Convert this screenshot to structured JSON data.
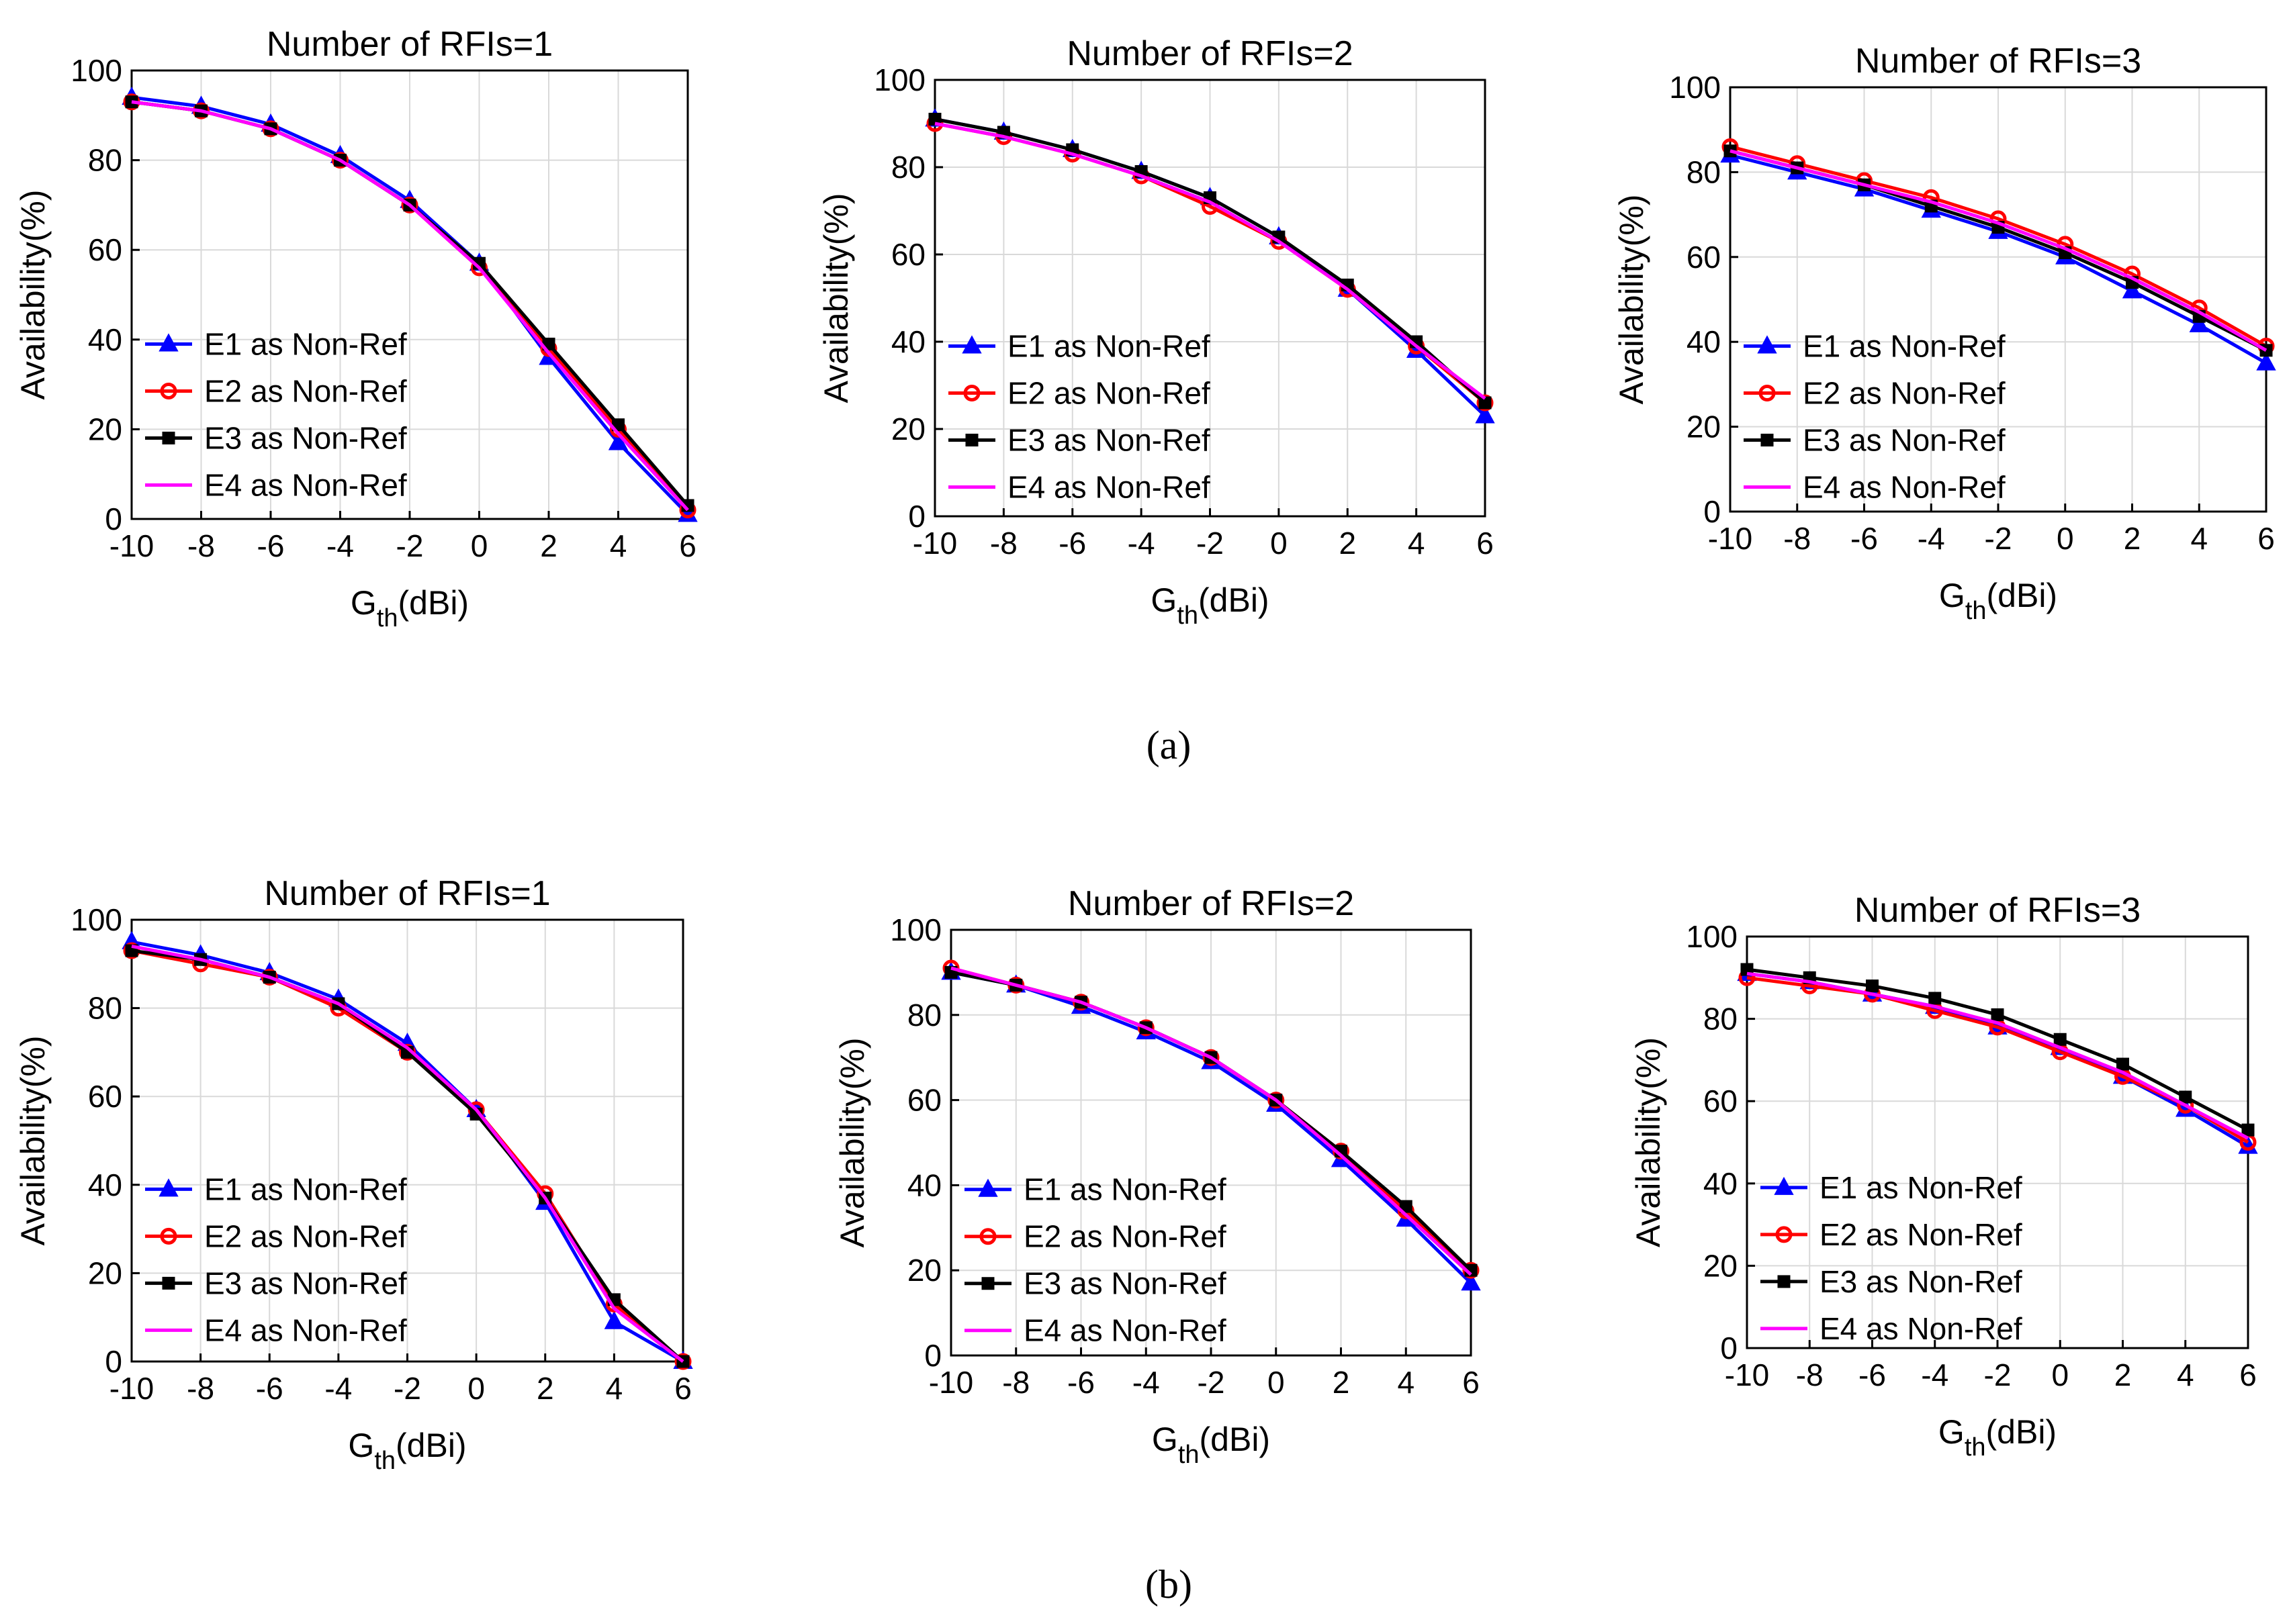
{
  "figure": {
    "caption_a": "(a)",
    "caption_b": "(b)",
    "colors": {
      "E1": "#0000ff",
      "E2": "#ff0000",
      "E3": "#000000",
      "E4": "#ff00ff",
      "grid": "#d9d9d9"
    }
  },
  "chart_data": [
    {
      "type": "line",
      "title": "Number of RFIs=1",
      "xlabel": "G_th(dBi)",
      "ylabel": "Availability(%)",
      "xlim": [
        -10,
        6
      ],
      "ylim": [
        0,
        100
      ],
      "x": [
        -10,
        -8,
        -6,
        -4,
        -2,
        0,
        2,
        4,
        6
      ],
      "xticks": [
        "-10",
        "-8",
        "-6",
        "-4",
        "-2",
        "0",
        "2",
        "4",
        "6"
      ],
      "yticks": [
        "0",
        "20",
        "40",
        "60",
        "80",
        "100"
      ],
      "legend": "center-left",
      "series": [
        {
          "name": "E1 as Non-Ref",
          "marker": "triangle",
          "values": [
            94,
            92,
            88,
            81,
            71,
            57,
            36,
            17,
            1
          ]
        },
        {
          "name": "E2 as Non-Ref",
          "marker": "circle",
          "values": [
            93,
            91,
            87,
            80,
            70,
            56,
            38,
            20,
            2
          ]
        },
        {
          "name": "E3 as Non-Ref",
          "marker": "square",
          "values": [
            93,
            91,
            87,
            80,
            70,
            57,
            39,
            21,
            3
          ]
        },
        {
          "name": "E4 as Non-Ref",
          "marker": "none",
          "values": [
            93,
            91,
            87,
            80,
            70,
            56,
            37,
            19,
            2
          ]
        }
      ]
    },
    {
      "type": "line",
      "title": "Number of RFIs=2",
      "xlabel": "G_th(dBi)",
      "ylabel": "Availability(%)",
      "xlim": [
        -10,
        6
      ],
      "ylim": [
        0,
        100
      ],
      "x": [
        -10,
        -8,
        -6,
        -4,
        -2,
        0,
        2,
        4,
        6
      ],
      "xticks": [
        "-10",
        "-8",
        "-6",
        "-4",
        "-2",
        "0",
        "2",
        "4",
        "6"
      ],
      "yticks": [
        "0",
        "20",
        "40",
        "60",
        "80",
        "100"
      ],
      "legend": "center-left",
      "series": [
        {
          "name": "E1 as Non-Ref",
          "marker": "triangle",
          "values": [
            91,
            88,
            84,
            79,
            73,
            64,
            52,
            38,
            23
          ]
        },
        {
          "name": "E2 as Non-Ref",
          "marker": "circle",
          "values": [
            90,
            87,
            83,
            78,
            71,
            63,
            52,
            39,
            26
          ]
        },
        {
          "name": "E3 as Non-Ref",
          "marker": "square",
          "values": [
            91,
            88,
            84,
            79,
            73,
            64,
            53,
            40,
            26
          ]
        },
        {
          "name": "E4 as Non-Ref",
          "marker": "none",
          "values": [
            90,
            87,
            83,
            78,
            72,
            63,
            52,
            39,
            27
          ]
        }
      ]
    },
    {
      "type": "line",
      "title": "Number of RFIs=3",
      "xlabel": "G_th(dBi)",
      "ylabel": "Availability(%)",
      "xlim": [
        -10,
        6
      ],
      "ylim": [
        0,
        100
      ],
      "x": [
        -10,
        -8,
        -6,
        -4,
        -2,
        0,
        2,
        4,
        6
      ],
      "xticks": [
        "-10",
        "-8",
        "-6",
        "-4",
        "-2",
        "0",
        "2",
        "4",
        "6"
      ],
      "yticks": [
        "0",
        "20",
        "40",
        "60",
        "80",
        "100"
      ],
      "legend": "center-left",
      "series": [
        {
          "name": "E1 as Non-Ref",
          "marker": "triangle",
          "values": [
            84,
            80,
            76,
            71,
            66,
            60,
            52,
            44,
            35
          ]
        },
        {
          "name": "E2 as Non-Ref",
          "marker": "circle",
          "values": [
            86,
            82,
            78,
            74,
            69,
            63,
            56,
            48,
            39
          ]
        },
        {
          "name": "E3 as Non-Ref",
          "marker": "square",
          "values": [
            85,
            81,
            77,
            72,
            67,
            61,
            54,
            46,
            38
          ]
        },
        {
          "name": "E4 as Non-Ref",
          "marker": "none",
          "values": [
            85,
            81,
            77,
            73,
            68,
            62,
            55,
            47,
            38
          ]
        }
      ]
    },
    {
      "type": "line",
      "title": "Number of RFIs=1",
      "xlabel": "G_th(dBi)",
      "ylabel": "Availability(%)",
      "xlim": [
        -10,
        6
      ],
      "ylim": [
        0,
        100
      ],
      "x": [
        -10,
        -8,
        -6,
        -4,
        -2,
        0,
        2,
        4,
        6
      ],
      "xticks": [
        "-10",
        "-8",
        "-6",
        "-4",
        "-2",
        "0",
        "2",
        "4",
        "6"
      ],
      "yticks": [
        "0",
        "20",
        "40",
        "60",
        "80",
        "100"
      ],
      "legend": "center-left",
      "series": [
        {
          "name": "E1 as Non-Ref",
          "marker": "triangle",
          "values": [
            95,
            92,
            88,
            82,
            72,
            57,
            36,
            9,
            0
          ]
        },
        {
          "name": "E2 as Non-Ref",
          "marker": "circle",
          "values": [
            93,
            90,
            87,
            80,
            70,
            57,
            38,
            13,
            0
          ]
        },
        {
          "name": "E3 as Non-Ref",
          "marker": "square",
          "values": [
            93,
            91,
            87,
            81,
            70,
            56,
            37,
            14,
            0
          ]
        },
        {
          "name": "E4 as Non-Ref",
          "marker": "none",
          "values": [
            94,
            91,
            87,
            81,
            71,
            57,
            37,
            12,
            0
          ]
        }
      ]
    },
    {
      "type": "line",
      "title": "Number of RFIs=2",
      "xlabel": "G_th(dBi)",
      "ylabel": "Availability(%)",
      "xlim": [
        -10,
        6
      ],
      "ylim": [
        0,
        100
      ],
      "x": [
        -10,
        -8,
        -6,
        -4,
        -2,
        0,
        2,
        4,
        6
      ],
      "xticks": [
        "-10",
        "-8",
        "-6",
        "-4",
        "-2",
        "0",
        "2",
        "4",
        "6"
      ],
      "yticks": [
        "0",
        "20",
        "40",
        "60",
        "80",
        "100"
      ],
      "legend": "center-left",
      "series": [
        {
          "name": "E1 as Non-Ref",
          "marker": "triangle",
          "values": [
            90,
            87,
            82,
            76,
            69,
            59,
            46,
            32,
            17
          ]
        },
        {
          "name": "E2 as Non-Ref",
          "marker": "circle",
          "values": [
            91,
            87,
            83,
            77,
            70,
            60,
            48,
            34,
            20
          ]
        },
        {
          "name": "E3 as Non-Ref",
          "marker": "square",
          "values": [
            90,
            87,
            83,
            77,
            70,
            60,
            48,
            35,
            20
          ]
        },
        {
          "name": "E4 as Non-Ref",
          "marker": "none",
          "values": [
            91,
            87,
            83,
            77,
            70,
            60,
            47,
            33,
            19
          ]
        }
      ]
    },
    {
      "type": "line",
      "title": "Number of RFIs=3",
      "xlabel": "G_th(dBi)",
      "ylabel": "Availability(%)",
      "xlim": [
        -10,
        6
      ],
      "ylim": [
        0,
        100
      ],
      "x": [
        -10,
        -8,
        -6,
        -4,
        -2,
        0,
        2,
        4,
        6
      ],
      "xticks": [
        "-10",
        "-8",
        "-6",
        "-4",
        "-2",
        "0",
        "2",
        "4",
        "6"
      ],
      "yticks": [
        "0",
        "20",
        "40",
        "60",
        "80",
        "100"
      ],
      "legend": "center-left",
      "series": [
        {
          "name": "E1 as Non-Ref",
          "marker": "triangle",
          "values": [
            91,
            89,
            86,
            83,
            78,
            73,
            66,
            58,
            49
          ]
        },
        {
          "name": "E2 as Non-Ref",
          "marker": "circle",
          "values": [
            90,
            88,
            86,
            82,
            78,
            72,
            66,
            59,
            50
          ]
        },
        {
          "name": "E3 as Non-Ref",
          "marker": "square",
          "values": [
            92,
            90,
            88,
            85,
            81,
            75,
            69,
            61,
            53
          ]
        },
        {
          "name": "E4 as Non-Ref",
          "marker": "none",
          "values": [
            91,
            89,
            86,
            83,
            79,
            73,
            67,
            59,
            51
          ]
        }
      ]
    }
  ]
}
